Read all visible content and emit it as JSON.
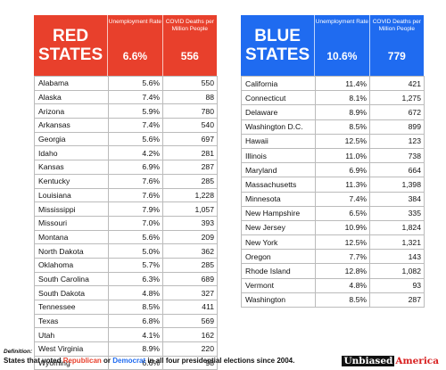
{
  "colors": {
    "red": "#e8402c",
    "blue": "#1f6bf0"
  },
  "red": {
    "title_line1": "RED",
    "title_line2": "STATES",
    "unemployment_label": "Unemployment Rate",
    "deaths_label": "COVID Deaths per Million People",
    "unemployment_total": "6.6%",
    "deaths_total": "556",
    "rows": [
      [
        "Alabama",
        "5.6%",
        "550"
      ],
      [
        "Alaska",
        "7.4%",
        "88"
      ],
      [
        "Arizona",
        "5.9%",
        "780"
      ],
      [
        "Arkansas",
        "7.4%",
        "540"
      ],
      [
        "Georgia",
        "5.6%",
        "697"
      ],
      [
        "Idaho",
        "4.2%",
        "281"
      ],
      [
        "Kansas",
        "6.9%",
        "287"
      ],
      [
        "Kentucky",
        "7.6%",
        "285"
      ],
      [
        "Louisiana",
        "7.6%",
        "1,228"
      ],
      [
        "Mississippi",
        "7.9%",
        "1,057"
      ],
      [
        "Missouri",
        "7.0%",
        "393"
      ],
      [
        "Montana",
        "5.6%",
        "209"
      ],
      [
        "North Dakota",
        "5.0%",
        "362"
      ],
      [
        "Oklahoma",
        "5.7%",
        "285"
      ],
      [
        "South Carolina",
        "6.3%",
        "689"
      ],
      [
        "South Dakota",
        "4.8%",
        "327"
      ],
      [
        "Tennessee",
        "8.5%",
        "411"
      ],
      [
        "Texas",
        "6.8%",
        "569"
      ],
      [
        "Utah",
        "4.1%",
        "162"
      ],
      [
        "West Virginia",
        "8.9%",
        "220"
      ],
      [
        "Wyoming",
        "6.6%",
        "98"
      ]
    ]
  },
  "blue": {
    "title_line1": "BLUE",
    "title_line2": "STATES",
    "unemployment_label": "Unemployment Rate",
    "deaths_label": "COVID Deaths per Million People",
    "unemployment_total": "10.6%",
    "deaths_total": "779",
    "rows": [
      [
        "California",
        "11.4%",
        "421"
      ],
      [
        "Connecticut",
        "8.1%",
        "1,275"
      ],
      [
        "Delaware",
        "8.9%",
        "672"
      ],
      [
        "Washington D.C.",
        "8.5%",
        "899"
      ],
      [
        "Hawaii",
        "12.5%",
        "123"
      ],
      [
        "Illinois",
        "11.0%",
        "738"
      ],
      [
        "Maryland",
        "6.9%",
        "664"
      ],
      [
        "Massachusetts",
        "11.3%",
        "1,398"
      ],
      [
        "Minnesota",
        "7.4%",
        "384"
      ],
      [
        "New Hampshire",
        "6.5%",
        "335"
      ],
      [
        "New Jersey",
        "10.9%",
        "1,824"
      ],
      [
        "New York",
        "12.5%",
        "1,321"
      ],
      [
        "Oregon",
        "7.7%",
        "143"
      ],
      [
        "Rhode Island",
        "12.8%",
        "1,082"
      ],
      [
        "Vermont",
        "4.8%",
        "93"
      ],
      [
        "Washington",
        "8.5%",
        "287"
      ]
    ]
  },
  "footer": {
    "definition_label": "Definition:",
    "text_before": "States that voted ",
    "republican": "Republican",
    "or": " or ",
    "democrat": "Democrat",
    "text_after": " in all four presidential elections since 2004."
  },
  "brand": {
    "unbiased": "Unbiased",
    "america": "America"
  }
}
